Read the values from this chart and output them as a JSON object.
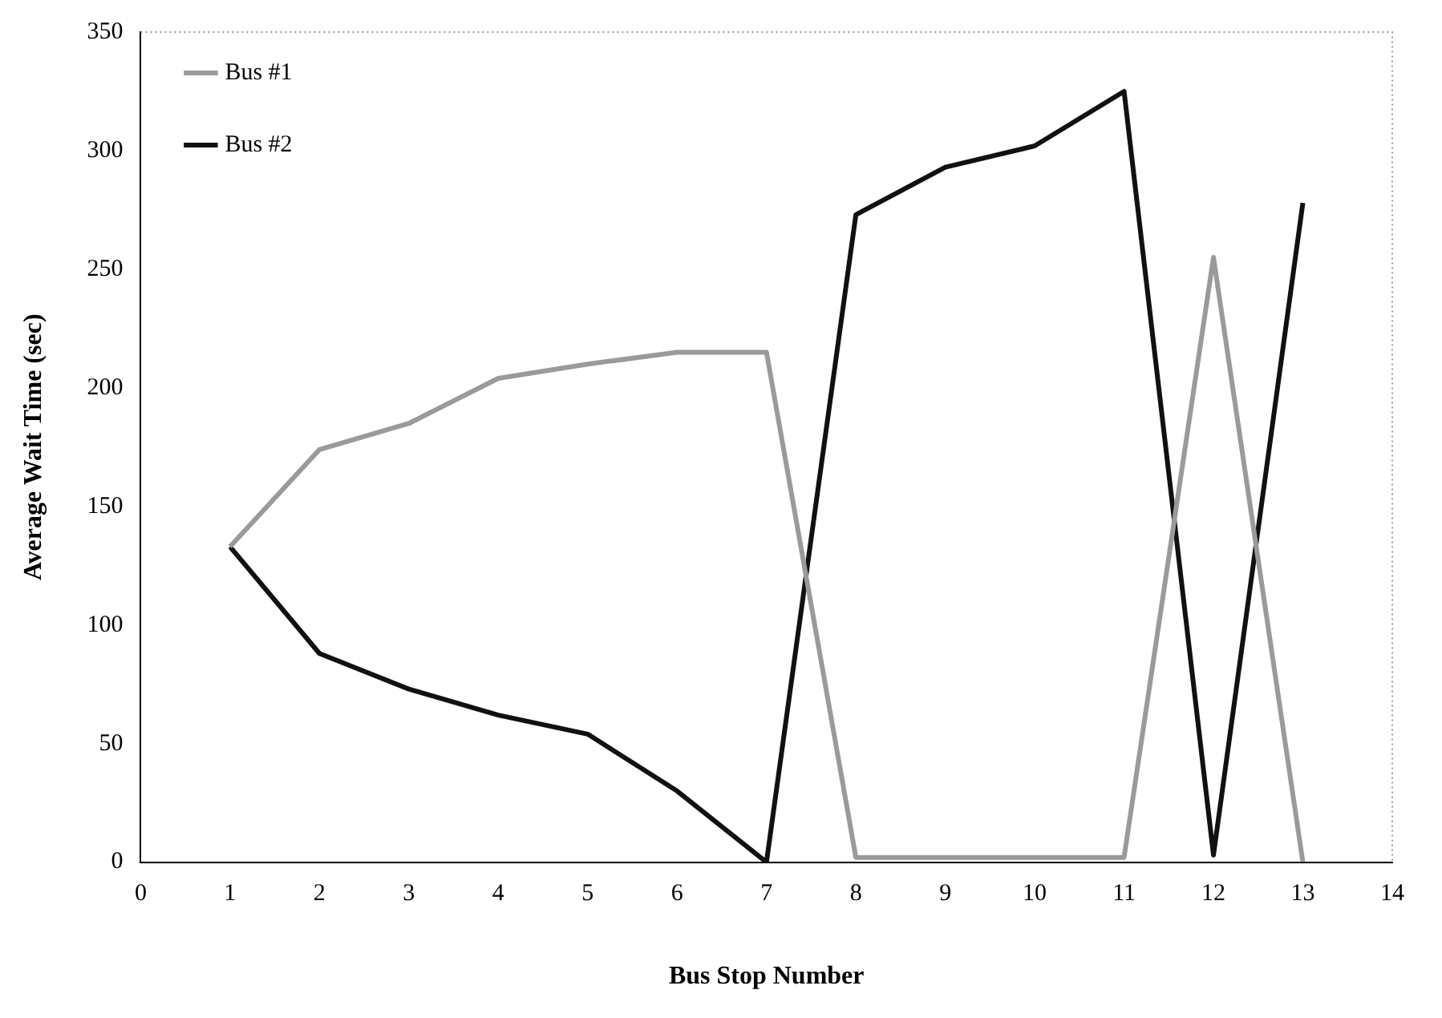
{
  "chart_data": {
    "type": "line",
    "xlabel": "Bus Stop Number",
    "ylabel": "Average Wait Time (sec)",
    "x": [
      1,
      2,
      3,
      4,
      5,
      6,
      7,
      8,
      9,
      10,
      11,
      12,
      13
    ],
    "series": [
      {
        "name": "Bus #1",
        "color": "#9a9a9a",
        "values": [
          133,
          174,
          185,
          204,
          210,
          215,
          215,
          2,
          2,
          2,
          2,
          255,
          0
        ]
      },
      {
        "name": "Bus #2",
        "color": "#111111",
        "values": [
          133,
          88,
          73,
          62,
          54,
          30,
          0,
          273,
          293,
          302,
          325,
          3,
          278
        ]
      }
    ],
    "xlim": [
      0,
      14
    ],
    "xticks": [
      0,
      1,
      2,
      3,
      4,
      5,
      6,
      7,
      8,
      9,
      10,
      11,
      12,
      13,
      14
    ],
    "ylim": [
      0,
      350
    ],
    "yticks": [
      0,
      50,
      100,
      150,
      200,
      250,
      300,
      350
    ],
    "grid": false,
    "legend": "top left",
    "marker": "none",
    "line_style": "solid"
  }
}
